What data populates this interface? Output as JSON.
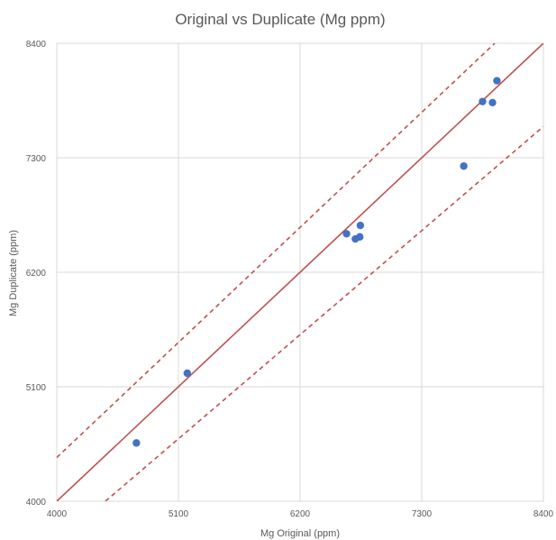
{
  "chart_data": {
    "type": "scatter",
    "title": "Original vs Duplicate (Mg ppm)",
    "xlabel": "Mg Original (ppm)",
    "ylabel": "Mg Duplicate (ppm)",
    "xlim": [
      4000,
      8400
    ],
    "ylim": [
      4000,
      8400
    ],
    "xticks": [
      "4000",
      "5100",
      "6200",
      "7300",
      "8400"
    ],
    "yticks": [
      "4000",
      "5100",
      "6200",
      "7300",
      "8400"
    ],
    "grid": true,
    "legend": "none",
    "series": [
      {
        "points": [
          {
            "x": 4720,
            "y": 4560
          },
          {
            "x": 5180,
            "y": 5230
          },
          {
            "x": 6620,
            "y": 6570
          },
          {
            "x": 6700,
            "y": 6520
          },
          {
            "x": 6740,
            "y": 6540
          },
          {
            "x": 6745,
            "y": 6650
          },
          {
            "x": 7680,
            "y": 7220
          },
          {
            "x": 7850,
            "y": 7840
          },
          {
            "x": 7940,
            "y": 7830
          },
          {
            "x": 7980,
            "y": 8040
          }
        ],
        "color": "#4472c4"
      }
    ],
    "reference_lines": [
      {
        "style": "solid",
        "color": "#c0504d",
        "from": [
          4000,
          4000
        ],
        "to": [
          8400,
          8400
        ]
      },
      {
        "style": "dashed",
        "color": "#c0504d",
        "from": [
          4000,
          4420
        ],
        "to": [
          7960,
          8400
        ]
      },
      {
        "style": "dashed",
        "color": "#c0504d",
        "from": [
          4440,
          4000
        ],
        "to": [
          8400,
          7600
        ]
      }
    ]
  }
}
